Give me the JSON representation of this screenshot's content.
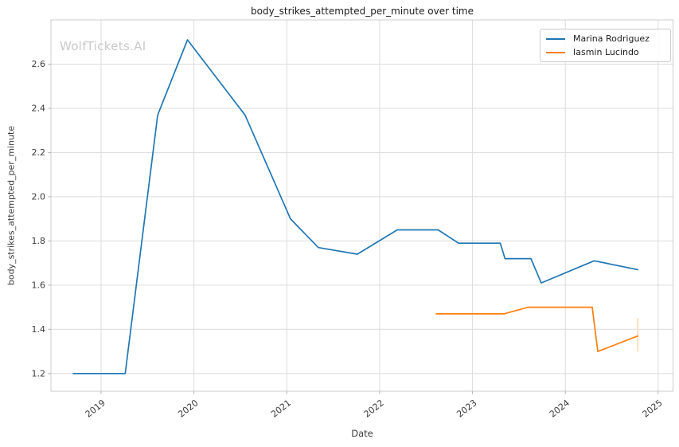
{
  "title": "body_strikes_attempted_per_minute over time",
  "watermark": "WolfTickets.AI",
  "axes": {
    "xlabel": "Date",
    "ylabel": "body_strikes_attempted_per_minute",
    "x_ticks": [
      2019,
      2020,
      2021,
      2022,
      2023,
      2024,
      2025
    ],
    "y_ticks": [
      1.2,
      1.4,
      1.6,
      1.8,
      2.0,
      2.2,
      2.4,
      2.6
    ],
    "grid": true
  },
  "legend": {
    "position": "top-right",
    "items": [
      {
        "label": "Marina Rodriguez",
        "color": "#1f77b4"
      },
      {
        "label": "Iasmin Lucindo",
        "color": "#ff7f0e"
      }
    ]
  },
  "colors": {
    "background": "#ffffff",
    "grid": "#dcdcdc",
    "frame": "#cccccc",
    "tick": "#b0b0b0",
    "tick_text": "#3b3b3b",
    "title_text": "#1c1c1c",
    "watermark_text": "#c9c9c9",
    "series_blue": "#1f77b4",
    "series_orange": "#ff7f0e"
  },
  "chart_data": {
    "type": "line",
    "title": "body_strikes_attempted_per_minute over time",
    "xlabel": "Date",
    "ylabel": "body_strikes_attempted_per_minute",
    "xlim": [
      2018.46,
      2025.16
    ],
    "ylim": [
      1.12,
      2.8
    ],
    "grid": true,
    "legend_position": "top-right",
    "series": [
      {
        "name": "Marina Rodriguez",
        "color": "#1f77b4",
        "x": [
          2018.7,
          2019.26,
          2019.61,
          2019.93,
          2020.55,
          2021.04,
          2021.34,
          2021.76,
          2022.19,
          2022.63,
          2022.85,
          2023.3,
          2023.35,
          2023.63,
          2023.74,
          2024.31,
          2024.78
        ],
        "y": [
          1.2,
          1.2,
          2.37,
          2.71,
          2.37,
          1.9,
          1.77,
          1.74,
          1.85,
          1.85,
          1.79,
          1.79,
          1.72,
          1.72,
          1.61,
          1.71,
          1.67
        ]
      },
      {
        "name": "Iasmin Lucindo",
        "color": "#ff7f0e",
        "x": [
          2022.61,
          2023.34,
          2023.6,
          2024.29,
          2024.35,
          2024.78
        ],
        "y": [
          1.47,
          1.47,
          1.5,
          1.5,
          1.3,
          1.37
        ]
      }
    ],
    "error_bars": [
      {
        "series": "Iasmin Lucindo",
        "x": 2024.78,
        "y_low": 1.3,
        "y_high": 1.45,
        "color": "#ffd9b3"
      }
    ]
  }
}
